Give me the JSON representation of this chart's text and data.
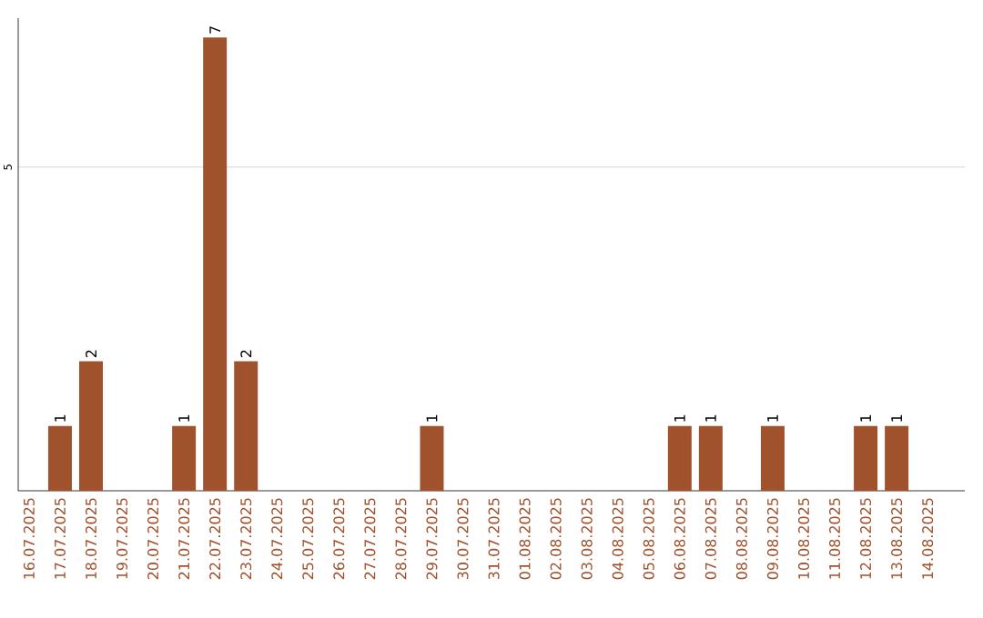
{
  "chart_data": {
    "type": "bar",
    "categories": [
      "16.07.2025",
      "17.07.2025",
      "18.07.2025",
      "19.07.2025",
      "20.07.2025",
      "21.07.2025",
      "22.07.2025",
      "23.07.2025",
      "24.07.2025",
      "25.07.2025",
      "26.07.2025",
      "27.07.2025",
      "28.07.2025",
      "29.07.2025",
      "30.07.2025",
      "31.07.2025",
      "01.08.2025",
      "02.08.2025",
      "03.08.2025",
      "04.08.2025",
      "05.08.2025",
      "06.08.2025",
      "07.08.2025",
      "08.08.2025",
      "09.08.2025",
      "10.08.2025",
      "11.08.2025",
      "12.08.2025",
      "13.08.2025",
      "14.08.2025"
    ],
    "values": [
      0,
      1,
      2,
      0,
      0,
      1,
      7,
      2,
      0,
      0,
      0,
      0,
      0,
      1,
      0,
      0,
      0,
      0,
      0,
      0,
      0,
      1,
      1,
      0,
      1,
      0,
      0,
      1,
      1,
      0
    ],
    "value_labels": [
      null,
      "1",
      "2",
      null,
      null,
      "1",
      "7",
      "2",
      null,
      null,
      null,
      null,
      null,
      "1",
      null,
      null,
      null,
      null,
      null,
      null,
      null,
      "1",
      "1",
      null,
      "1",
      null,
      null,
      "1",
      "1",
      null
    ],
    "color": "#a0522d",
    "ylim": [
      0,
      7.3
    ],
    "yticks": [
      5
    ],
    "grid": "y"
  }
}
